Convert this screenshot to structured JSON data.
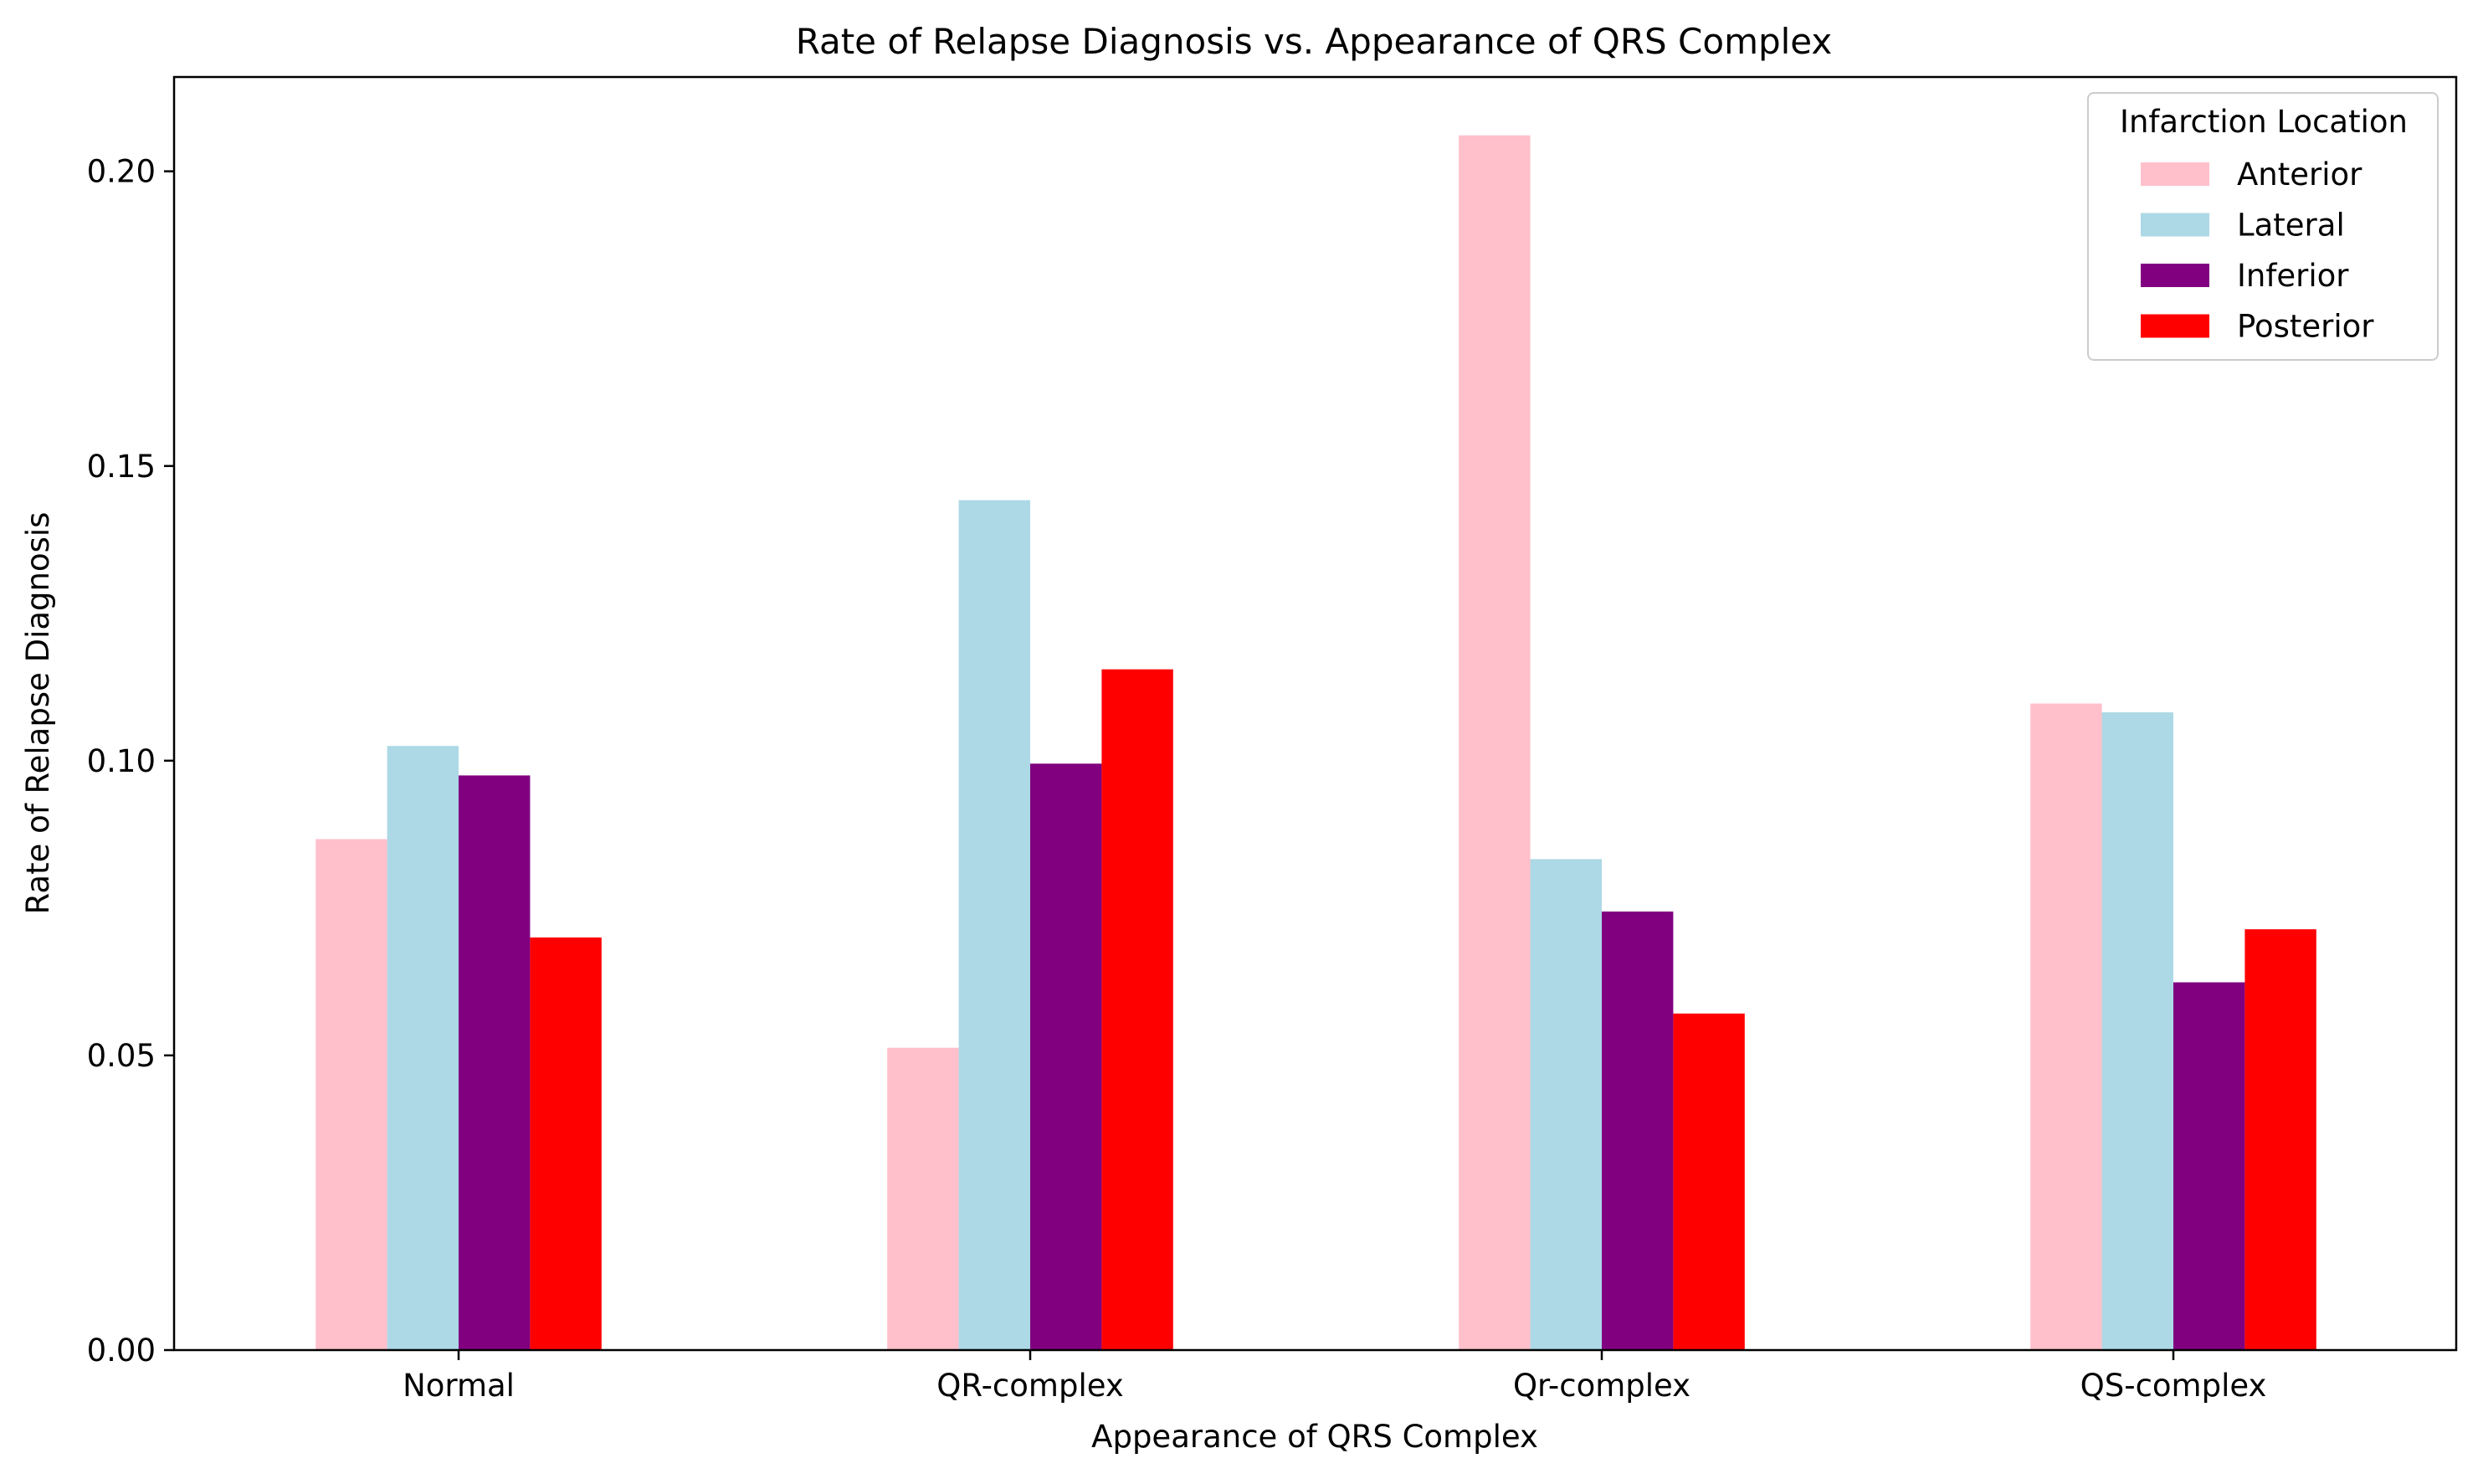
{
  "chart_data": {
    "type": "bar",
    "title": "Rate of Relapse Diagnosis vs. Appearance of QRS Complex",
    "xlabel": "Appearance of QRS Complex",
    "ylabel": "Rate of Relapse Diagnosis",
    "categories": [
      "Normal",
      "QR-complex",
      "Qr-complex",
      "QS-complex"
    ],
    "ylim": [
      0,
      0.216
    ],
    "yticks": [
      0.0,
      0.05,
      0.1,
      0.15,
      0.2
    ],
    "ytick_labels": [
      "0.00",
      "0.05",
      "0.10",
      "0.15",
      "0.20"
    ],
    "grid": false,
    "legend": {
      "title": "Infarction Location",
      "placement": "top-right"
    },
    "series": [
      {
        "name": "Anterior",
        "color": "#ffc0cb",
        "values": [
          0.0867,
          0.0513,
          0.2061,
          0.1097
        ]
      },
      {
        "name": "Lateral",
        "color": "#add8e6",
        "values": [
          0.1025,
          0.1442,
          0.0833,
          0.1082
        ]
      },
      {
        "name": "Inferior",
        "color": "#800080",
        "values": [
          0.0975,
          0.0995,
          0.0744,
          0.0624
        ]
      },
      {
        "name": "Posterior",
        "color": "#ff0000",
        "values": [
          0.07,
          0.1155,
          0.0571,
          0.0714
        ]
      }
    ]
  }
}
